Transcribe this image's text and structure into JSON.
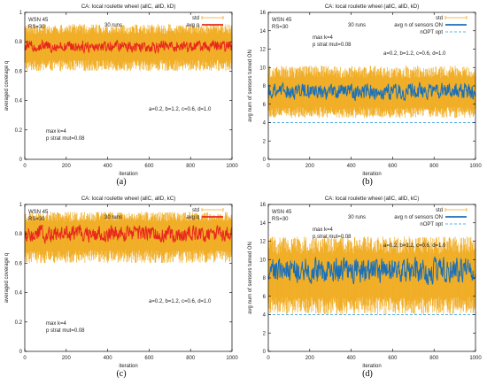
{
  "chart_data": [
    {
      "id": "a",
      "type": "line",
      "title": "CA: local roulette wheel (allC, allD, kD)",
      "xlabel": "iteration",
      "ylabel": "averaged coverage q",
      "xlim": [
        0,
        1000
      ],
      "ylim": [
        0,
        1
      ],
      "xticks": [
        0,
        200,
        400,
        600,
        800,
        1000
      ],
      "yticks": [
        0,
        0.2,
        0.4,
        0.6,
        0.8,
        1
      ],
      "ytick_labels": [
        "0",
        "0.2",
        "0.4",
        "0.6",
        "0.8",
        "1"
      ],
      "legend_position": "top-right",
      "grid": false,
      "series": [
        {
          "name": "std",
          "kind": "errorbar",
          "color": "#f0a818",
          "center": 0.77,
          "low": 0.6,
          "high": 0.92
        },
        {
          "name": "avg q",
          "kind": "line",
          "color": "#e8281c",
          "center": 0.77,
          "low": 0.72,
          "high": 0.82
        }
      ],
      "annotations": [
        "WSN 45",
        "RS=30",
        "30 runs",
        "max k=4",
        "p strat mut=0.08",
        "a=0.2, b=1.2, c=0.6, d=1.0"
      ],
      "caption": "(a)"
    },
    {
      "id": "b",
      "type": "line",
      "title": "CA: local roulette wheel (allC, allD, kD)",
      "xlabel": "iteration",
      "ylabel": "avg num of sensors turned ON",
      "xlim": [
        0,
        1000
      ],
      "ylim": [
        0,
        16
      ],
      "xticks": [
        0,
        200,
        400,
        600,
        800,
        1000
      ],
      "yticks": [
        0,
        2,
        4,
        6,
        8,
        10,
        12,
        14,
        16
      ],
      "ytick_labels": [
        "0",
        "2",
        "4",
        "6",
        "8",
        "10",
        "12",
        "14",
        "16"
      ],
      "legend_position": "top-right",
      "grid": false,
      "series": [
        {
          "name": "std",
          "kind": "errorbar",
          "color": "#f0a818",
          "center": 7.2,
          "low": 4.5,
          "high": 10.2
        },
        {
          "name": "avg n of sensors ON",
          "kind": "line",
          "color": "#1a70b8",
          "center": 7.3,
          "low": 6.3,
          "high": 8.5
        },
        {
          "name": "nOPT opt",
          "kind": "dashed",
          "color": "#5ab0e0",
          "value": 4
        }
      ],
      "annotations": [
        "WSN 45",
        "RS=30",
        "30 runs",
        "max k=4",
        "p strat mut=0.08",
        "a=0.2, b=1.2, c=0.6, d=1.0"
      ],
      "caption": "(b)"
    },
    {
      "id": "c",
      "type": "line",
      "title": "CA: local roulette wheel (allC, allD, kC)",
      "xlabel": "iteration",
      "ylabel": "averaged coverage q",
      "xlim": [
        0,
        1000
      ],
      "ylim": [
        0,
        1
      ],
      "xticks": [
        0,
        200,
        400,
        600,
        800,
        1000
      ],
      "yticks": [
        0,
        0.2,
        0.4,
        0.6,
        0.8,
        1
      ],
      "ytick_labels": [
        "0",
        "0.2",
        "0.4",
        "0.6",
        "0.8",
        "1"
      ],
      "legend_position": "top-right",
      "grid": false,
      "series": [
        {
          "name": "std",
          "kind": "errorbar",
          "color": "#f0a818",
          "center": 0.8,
          "low": 0.6,
          "high": 0.95
        },
        {
          "name": "avg q",
          "kind": "line",
          "color": "#e8281c",
          "center": 0.81,
          "low": 0.73,
          "high": 0.87
        }
      ],
      "annotations": [
        "WSN 45",
        "RS=30",
        "30 runs",
        "max k=4",
        "p strat mut=0.08",
        "a=0.2, b=1.2, c=0.6, d=1.0"
      ],
      "caption": "(c)"
    },
    {
      "id": "d",
      "type": "line",
      "title": "CA: local roulette wheel (allC, allD, kC)",
      "xlabel": "iteration",
      "ylabel": "avg num of sensors turned ON",
      "xlim": [
        0,
        1000
      ],
      "ylim": [
        0,
        16
      ],
      "xticks": [
        0,
        200,
        400,
        600,
        800,
        1000
      ],
      "yticks": [
        0,
        2,
        4,
        6,
        8,
        10,
        12,
        14,
        16
      ],
      "ytick_labels": [
        "0",
        "2",
        "4",
        "6",
        "8",
        "10",
        "12",
        "14",
        "16"
      ],
      "legend_position": "top-right",
      "grid": false,
      "series": [
        {
          "name": "std",
          "kind": "errorbar",
          "color": "#f0a818",
          "center": 8.3,
          "low": 4.0,
          "high": 12.5
        },
        {
          "name": "avg n of sensors ON",
          "kind": "line",
          "color": "#1a70b8",
          "center": 8.5,
          "low": 7.0,
          "high": 10.5
        },
        {
          "name": "nOPT opt",
          "kind": "dashed",
          "color": "#5ab0e0",
          "value": 4
        }
      ],
      "annotations": [
        "WSN 45",
        "RS=30",
        "30 runs",
        "max k=4",
        "p strat mut=0.08",
        "a=0.2, b=1.2, c=0.6, d=1.0"
      ],
      "caption": "(d)"
    }
  ]
}
